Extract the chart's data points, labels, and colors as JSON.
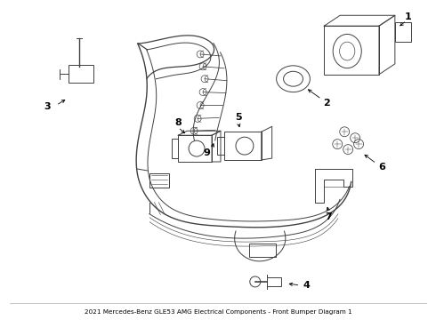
{
  "title": "2021 Mercedes-Benz GLE53 AMG Electrical Components - Front Bumper Diagram 1",
  "bg_color": "#ffffff",
  "line_color": "#404040",
  "label_color": "#000000",
  "fig_width": 4.9,
  "fig_height": 3.6,
  "dpi": 100
}
